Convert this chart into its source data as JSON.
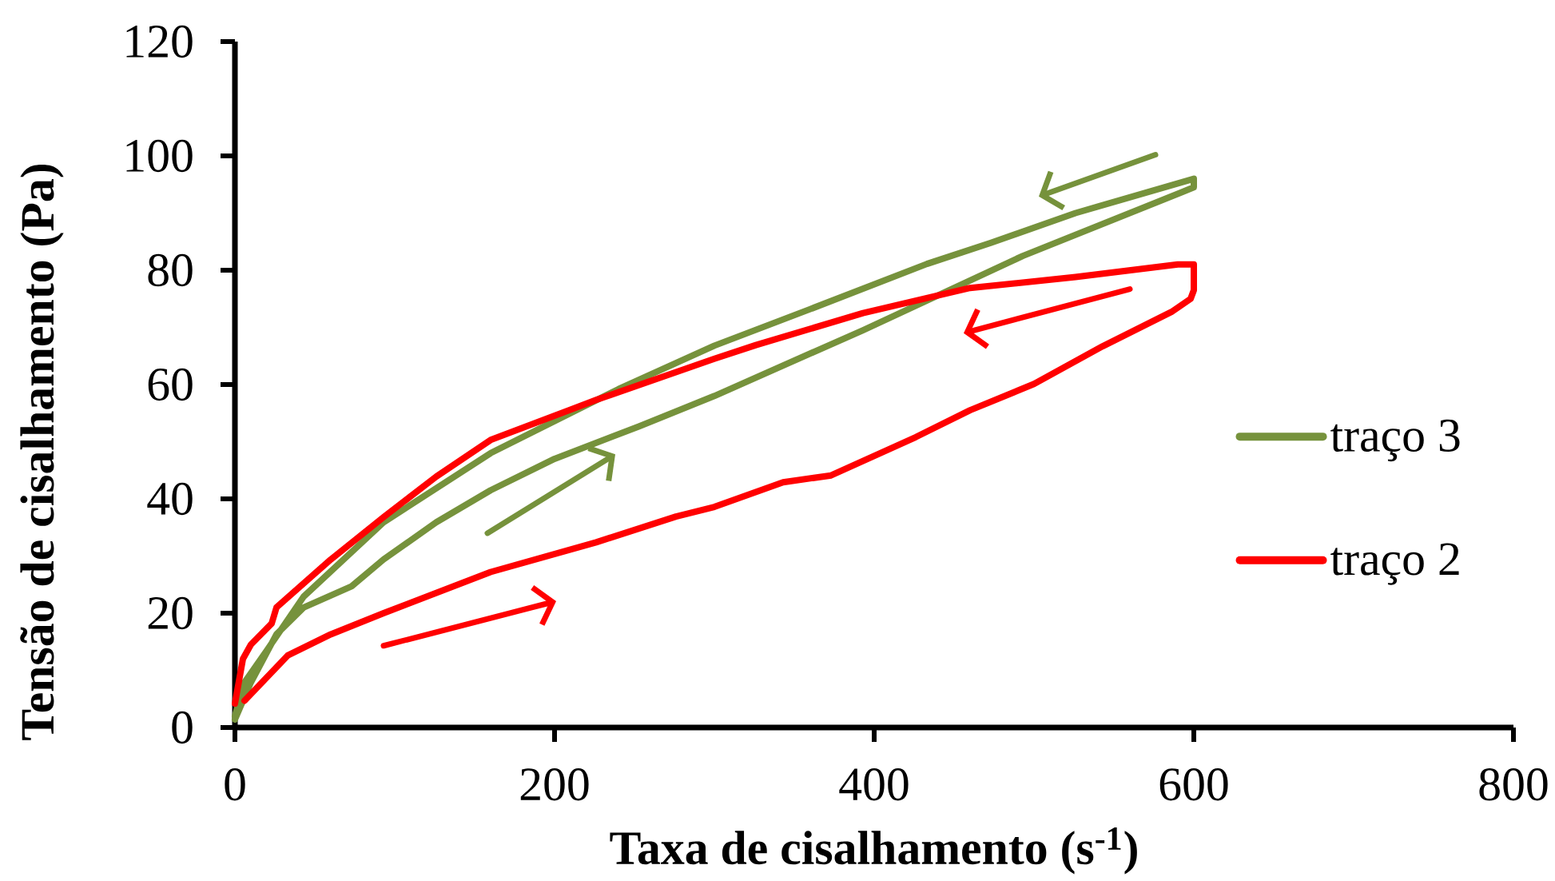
{
  "chart_data": {
    "type": "line",
    "xlabel": "Taxa de cisalhamento (s$^{-1}$)",
    "ylabel": "Tensão de cisalhamento (Pa)",
    "xlim": [
      0,
      800
    ],
    "ylim": [
      0,
      120
    ],
    "xticks": [
      0,
      200,
      400,
      600,
      800
    ],
    "yticks": [
      0,
      20,
      40,
      60,
      80,
      100,
      120
    ],
    "legend": "right",
    "marker": "none",
    "line_style": "solid",
    "series": [
      {
        "name": "traço 3",
        "color": "#76923c",
        "x": [
          0,
          10,
          26,
          43,
          73,
          93,
          126,
          160,
          200,
          253,
          300,
          393,
          493,
          593,
          600,
          600,
          526,
          473,
          433,
          360,
          300,
          240,
          160,
          93,
          43,
          20,
          6,
          0
        ],
        "values": [
          1.4,
          7.9,
          16.3,
          21,
          24.7,
          29.4,
          35.9,
          41.5,
          47,
          52.7,
          58,
          69.5,
          82.5,
          93.7,
          94.5,
          96,
          90,
          84.8,
          81.1,
          73.2,
          66.8,
          59.2,
          48,
          35.9,
          22.9,
          13.5,
          7.9,
          2
        ]
      },
      {
        "name": "traço 2",
        "color": "#ff0000",
        "x": [
          6,
          33,
          60,
          93,
          160,
          226,
          276,
          300,
          343,
          373,
          426,
          460,
          500,
          543,
          586,
          598,
          600,
          600,
          590,
          526,
          460,
          393,
          326,
          300,
          226,
          160,
          126,
          93,
          60,
          26,
          23,
          10,
          5,
          0
        ],
        "values": [
          4.7,
          12.6,
          16.3,
          20,
          27.2,
          32.4,
          36.9,
          38.6,
          42.9,
          44.1,
          50.8,
          55.5,
          60.1,
          66.7,
          72.7,
          75,
          76.5,
          81,
          81,
          78.8,
          76.9,
          72.5,
          66.9,
          64.5,
          57.3,
          50.3,
          43.9,
          36.8,
          29.4,
          21,
          18.2,
          14.5,
          12,
          4.2
        ]
      }
    ]
  }
}
